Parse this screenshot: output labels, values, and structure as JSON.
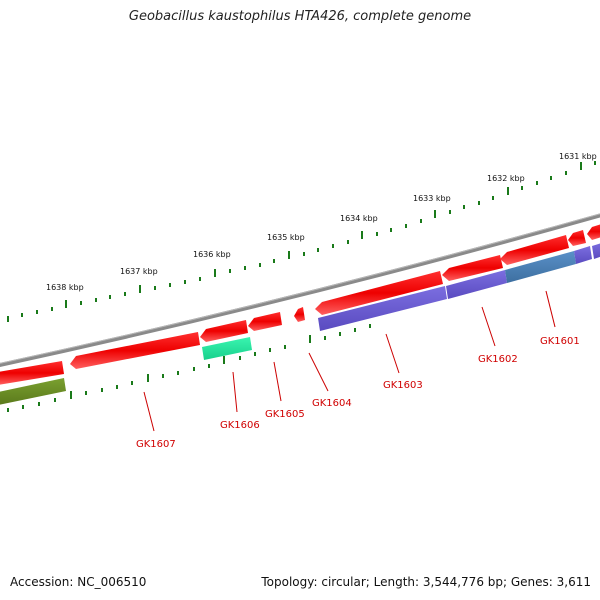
{
  "title": "Geobacillus kaustophilus HTA426, complete genome",
  "footer": {
    "accession": "Accession: NC_006510",
    "summary": "Topology: circular; Length: 3,544,776 bp; Genes: 3,611"
  },
  "colors": {
    "backbone": "#808080",
    "tick": "#1a7a1a",
    "gene_red": "#ff1010",
    "cds_purple": "#6a5acd",
    "cds_steel": "#4a7fb5",
    "cds_teal": "#22e8a0",
    "cds_olive": "#6b8e23",
    "label_red": "#d00000"
  },
  "ruler_labels": [
    "1631 kbp",
    "1632 kbp",
    "1633 kbp",
    "1634 kbp",
    "1635 kbp",
    "1636 kbp",
    "1637 kbp",
    "1638 kbp"
  ],
  "gene_labels": [
    "GK1601",
    "GK1602",
    "GK1603",
    "GK1604",
    "GK1605",
    "GK1606",
    "GK1607"
  ]
}
